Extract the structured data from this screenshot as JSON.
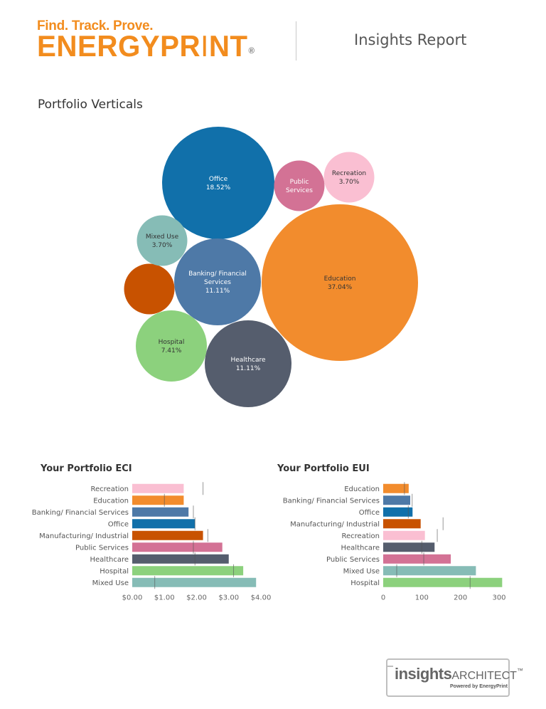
{
  "header": {
    "tagline": "Find. Track. Prove.",
    "brand_main": "ENERGYPR",
    "brand_i": "I",
    "brand_tail": "NT",
    "registered": "®",
    "report_title": "Insights Report",
    "brand_color": "#f28c1e"
  },
  "section_title": "Portfolio Verticals",
  "chart_data": [
    {
      "type": "bubble",
      "title": "Portfolio Verticals",
      "items": [
        {
          "label": "Education",
          "value": 37.04,
          "value_label": "37.04%",
          "color": "#f28c2d",
          "text_color": "#333333"
        },
        {
          "label": "Office",
          "value": 18.52,
          "value_label": "18.52%",
          "color": "#1170aa",
          "text_color": "#ffffff"
        },
        {
          "label": "Banking/ Financial Services",
          "label_lines": [
            "Banking/ Financial",
            "Services"
          ],
          "value": 11.11,
          "value_label": "11.11%",
          "color": "#4e79a7",
          "text_color": "#ffffff"
        },
        {
          "label": "Healthcare",
          "value": 11.11,
          "value_label": "11.11%",
          "color": "#555d6d",
          "text_color": "#ffffff"
        },
        {
          "label": "Hospital",
          "value": 7.41,
          "value_label": "7.41%",
          "color": "#8cd17d",
          "text_color": "#333333"
        },
        {
          "label": "Manufacturing/ Industrial",
          "value": 3.7,
          "value_label": "",
          "color": "#c85200",
          "text_color": "#ffffff"
        },
        {
          "label": "Mixed Use",
          "value": 3.7,
          "value_label": "3.70%",
          "color": "#86bcb6",
          "text_color": "#333333"
        },
        {
          "label": "Public Services",
          "label_lines": [
            "Public",
            "Services"
          ],
          "value": 3.7,
          "value_label": "",
          "color": "#d37295",
          "text_color": "#ffffff"
        },
        {
          "label": "Recreation",
          "value": 3.7,
          "value_label": "3.70%",
          "color": "#fabfd2",
          "text_color": "#333333"
        }
      ]
    },
    {
      "type": "bar",
      "orientation": "horizontal",
      "title": "Your Portfolio ECI",
      "categories": [
        "Recreation",
        "Education",
        "Banking/ Financial Services",
        "Office",
        "Manufacturing/ Industrial",
        "Public Services",
        "Healthcare",
        "Hospital",
        "Mixed Use"
      ],
      "values": [
        1.6,
        1.6,
        1.75,
        1.95,
        2.2,
        2.8,
        3.0,
        3.45,
        3.85
      ],
      "reference_values": [
        2.2,
        1.0,
        1.9,
        1.95,
        2.35,
        1.9,
        1.95,
        3.15,
        0.7
      ],
      "colors": [
        "#fabfd2",
        "#f28c2d",
        "#4e79a7",
        "#1170aa",
        "#c85200",
        "#d37295",
        "#555d6d",
        "#8cd17d",
        "#86bcb6"
      ],
      "xlim": [
        0,
        4.0
      ],
      "ticks": [
        0,
        1,
        2,
        3,
        4
      ],
      "tick_labels": [
        "$0.00",
        "$1.00",
        "$2.00",
        "$3.00",
        "$4.00"
      ]
    },
    {
      "type": "bar",
      "orientation": "horizontal",
      "title": "Your Portfolio EUI",
      "categories": [
        "Education",
        "Banking/ Financial Services",
        "Office",
        "Manufacturing/ Industrial",
        "Recreation",
        "Healthcare",
        "Public Services",
        "Mixed Use",
        "Hospital"
      ],
      "values": [
        66,
        70,
        76,
        97,
        108,
        133,
        175,
        240,
        308
      ],
      "reference_values": [
        55,
        75,
        65,
        155,
        140,
        100,
        105,
        35,
        225
      ],
      "colors": [
        "#f28c2d",
        "#4e79a7",
        "#1170aa",
        "#c85200",
        "#fabfd2",
        "#555d6d",
        "#d37295",
        "#86bcb6",
        "#8cd17d"
      ],
      "xlim": [
        0,
        300
      ],
      "ticks": [
        0,
        100,
        200,
        300
      ],
      "tick_labels": [
        "0",
        "100",
        "200",
        "300"
      ]
    }
  ],
  "footer": {
    "logo_insights": "insights",
    "logo_architect": "ARCHITECT",
    "logo_tm": "™",
    "logo_sub": "Powered by EnergyPrint"
  }
}
